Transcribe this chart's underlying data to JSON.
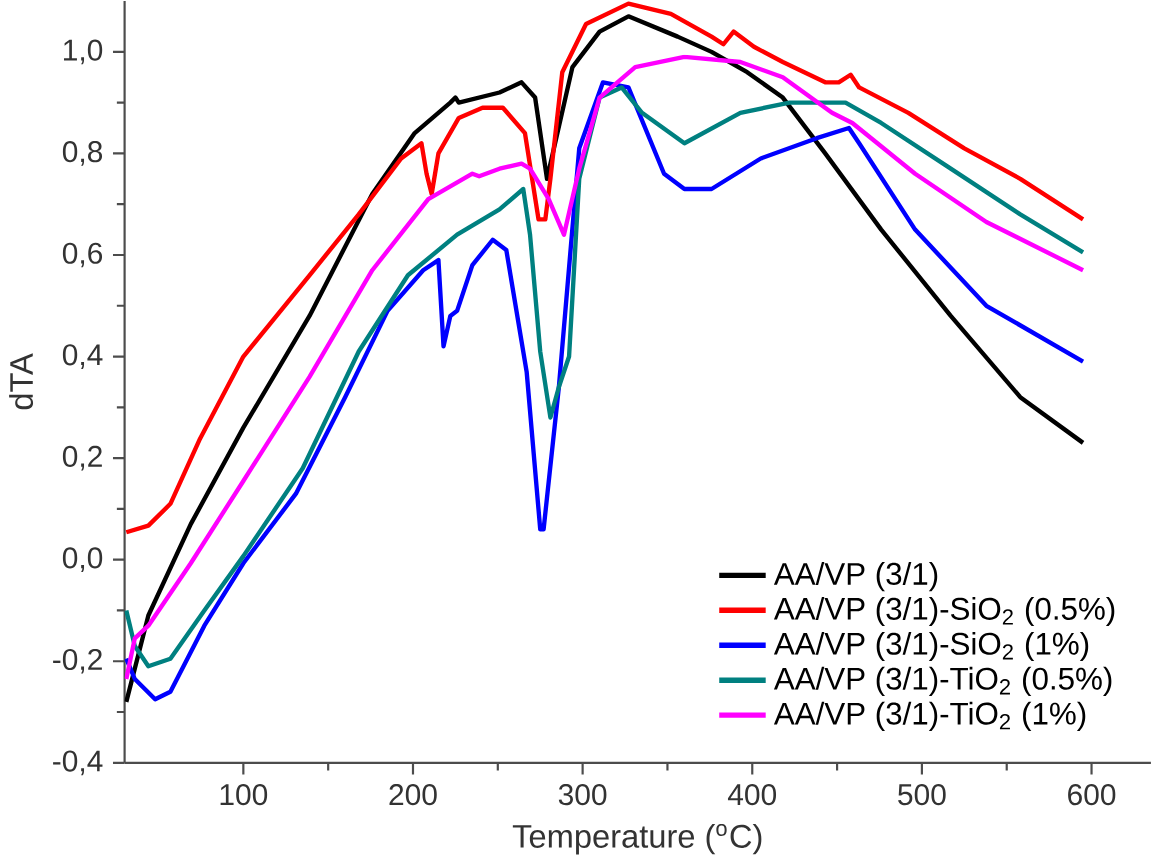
{
  "chart_data": {
    "type": "line",
    "xlabel": "Temperature ($^{o}$C)",
    "ylabel": "dTA",
    "xlim": [
      30,
      635
    ],
    "ylim": [
      -0.4,
      1.1
    ],
    "xticks": [
      100,
      200,
      300,
      400,
      500,
      600
    ],
    "yticks": [
      {
        "value": -0.4,
        "label": "-0,4"
      },
      {
        "value": -0.2,
        "label": "-0,2"
      },
      {
        "value": 0,
        "label": "0,0"
      },
      {
        "value": 0.2,
        "label": "0,2"
      },
      {
        "value": 0.4,
        "label": "0,4"
      },
      {
        "value": 0.6,
        "label": "0,6"
      },
      {
        "value": 0.8,
        "label": "0,8"
      },
      {
        "value": 1.0,
        "label": "1,0"
      }
    ],
    "grid": false,
    "legend": "bottom right",
    "marker": "none",
    "line_style": "solid",
    "series": [
      {
        "name": "AA/VP (3/1)",
        "color": "#000000",
        "x": [
          31,
          44,
          69,
          100,
          139,
          176,
          201,
          222,
          225,
          227,
          251,
          264,
          272,
          279,
          294,
          310,
          327,
          356,
          376,
          397,
          418,
          443,
          476,
          517,
          558,
          595
        ],
        "values": [
          -0.28,
          -0.11,
          0.07,
          0.26,
          0.48,
          0.72,
          0.84,
          0.9,
          0.91,
          0.9,
          0.92,
          0.94,
          0.91,
          0.75,
          0.97,
          1.04,
          1.07,
          1.03,
          1.0,
          0.96,
          0.91,
          0.8,
          0.65,
          0.48,
          0.32,
          0.23
        ]
      },
      {
        "name": "AA/VP (3/1)-SiO$_{2}$ (0.5%)",
        "color": "#ff0000",
        "x": [
          31,
          44,
          57,
          74,
          100,
          139,
          168,
          193,
          205,
          208,
          211,
          215,
          227,
          241,
          253,
          266,
          274,
          278,
          281,
          288,
          302,
          327,
          352,
          376,
          383,
          389,
          401,
          418,
          443,
          451,
          458,
          463,
          492,
          525,
          558,
          595
        ],
        "values": [
          0.054,
          0.067,
          0.11,
          0.235,
          0.4,
          0.56,
          0.68,
          0.79,
          0.82,
          0.76,
          0.72,
          0.8,
          0.87,
          0.89,
          0.89,
          0.84,
          0.67,
          0.67,
          0.75,
          0.96,
          1.055,
          1.095,
          1.075,
          1.03,
          1.015,
          1.04,
          1.01,
          0.98,
          0.94,
          0.94,
          0.955,
          0.93,
          0.88,
          0.81,
          0.75,
          0.67
        ]
      },
      {
        "name": "AA/VP (3/1)-SiO$_{2}$ (1%)",
        "color": "#0000ff",
        "x": [
          31,
          36,
          48,
          57,
          77,
          100,
          131,
          160,
          185,
          206,
          215,
          218,
          222,
          226,
          235,
          247,
          255,
          267,
          275,
          277,
          286,
          298,
          312,
          327,
          348,
          360,
          376,
          405,
          438,
          457,
          463,
          496,
          538,
          595
        ],
        "values": [
          -0.195,
          -0.235,
          -0.275,
          -0.26,
          -0.13,
          -0.007,
          0.13,
          0.32,
          0.49,
          0.57,
          0.59,
          0.42,
          0.48,
          0.49,
          0.58,
          0.63,
          0.61,
          0.37,
          0.06,
          0.06,
          0.34,
          0.81,
          0.94,
          0.93,
          0.76,
          0.73,
          0.73,
          0.79,
          0.83,
          0.85,
          0.82,
          0.65,
          0.5,
          0.39
        ]
      },
      {
        "name": "AA/VP (3/1)-TiO$_{2}$ (0.5%)",
        "color": "#008080",
        "x": [
          31,
          36,
          44,
          57,
          77,
          100,
          135,
          168,
          197,
          226,
          251,
          265,
          269,
          275,
          281,
          286,
          292,
          298,
          310,
          323,
          335,
          360,
          393,
          422,
          455,
          476,
          517,
          558,
          595
        ],
        "values": [
          -0.1,
          -0.17,
          -0.21,
          -0.195,
          -0.1,
          0.007,
          0.18,
          0.41,
          0.56,
          0.64,
          0.69,
          0.73,
          0.64,
          0.41,
          0.28,
          0.34,
          0.4,
          0.75,
          0.91,
          0.93,
          0.88,
          0.82,
          0.88,
          0.9,
          0.9,
          0.86,
          0.77,
          0.68,
          0.605
        ]
      },
      {
        "name": "AA/VP (3/1)-TiO$_{2}$ (1%)",
        "color": "#ff00ff",
        "x": [
          31,
          36,
          44,
          69,
          100,
          139,
          176,
          209,
          235,
          239,
          251,
          264,
          269,
          280,
          289,
          298,
          310,
          331,
          360,
          393,
          418,
          447,
          459,
          496,
          538,
          595
        ],
        "values": [
          -0.235,
          -0.155,
          -0.13,
          -0.007,
          0.155,
          0.36,
          0.57,
          0.71,
          0.76,
          0.755,
          0.77,
          0.78,
          0.77,
          0.71,
          0.64,
          0.77,
          0.91,
          0.97,
          0.99,
          0.98,
          0.95,
          0.88,
          0.86,
          0.76,
          0.665,
          0.57
        ]
      }
    ]
  }
}
